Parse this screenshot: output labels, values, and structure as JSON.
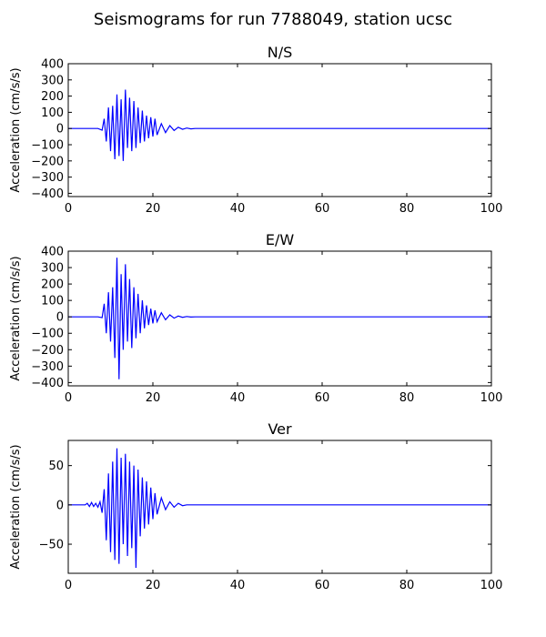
{
  "figure": {
    "title": "Seismograms for run 7788049, station ucsc"
  },
  "chart_data": [
    {
      "type": "line",
      "title": "N/S",
      "xlabel": "",
      "ylabel": "Acceleration (cm/s/s)",
      "xlim": [
        0,
        100
      ],
      "ylim": [
        -420,
        400
      ],
      "xticks": [
        0,
        20,
        40,
        60,
        80,
        100
      ],
      "yticks": [
        -400,
        -300,
        -200,
        -100,
        0,
        100,
        200,
        300,
        400
      ],
      "grid": false,
      "line_color": "#0000ff",
      "series": [
        {
          "x": [
            0,
            5,
            7,
            8,
            8.5,
            9,
            9.5,
            10,
            10.5,
            11,
            11.5,
            12,
            12.5,
            13,
            13.5,
            14,
            14.5,
            15,
            15.5,
            16,
            16.5,
            17,
            17.5,
            18,
            18.5,
            19,
            19.5,
            20,
            20.5,
            21,
            22,
            23,
            24,
            25,
            26,
            27,
            28,
            29,
            30,
            40,
            60,
            80,
            100
          ],
          "y": [
            0,
            0,
            0,
            -10,
            60,
            -80,
            130,
            -140,
            140,
            -190,
            210,
            -170,
            180,
            -200,
            240,
            -120,
            190,
            -140,
            170,
            -120,
            130,
            -90,
            110,
            -80,
            80,
            -60,
            70,
            -50,
            60,
            -40,
            30,
            -25,
            18,
            -12,
            8,
            -5,
            3,
            -2,
            0,
            0,
            0,
            0,
            0
          ]
        }
      ]
    },
    {
      "type": "line",
      "title": "E/W",
      "xlabel": "",
      "ylabel": "Acceleration (cm/s/s)",
      "xlim": [
        0,
        100
      ],
      "ylim": [
        -420,
        400
      ],
      "xticks": [
        0,
        20,
        40,
        60,
        80,
        100
      ],
      "yticks": [
        -400,
        -300,
        -200,
        -100,
        0,
        100,
        200,
        300,
        400
      ],
      "grid": false,
      "line_color": "#0000ff",
      "series": [
        {
          "x": [
            0,
            5,
            7,
            8,
            8.5,
            9,
            9.5,
            10,
            10.5,
            11,
            11.5,
            12,
            12.5,
            13,
            13.5,
            14,
            14.5,
            15,
            15.5,
            16,
            16.5,
            17,
            17.5,
            18,
            18.5,
            19,
            19.5,
            20,
            20.5,
            21,
            22,
            23,
            24,
            25,
            26,
            27,
            28,
            29,
            30,
            40,
            60,
            80,
            100
          ],
          "y": [
            0,
            0,
            0,
            -5,
            80,
            -100,
            150,
            -150,
            180,
            -250,
            360,
            -380,
            260,
            -200,
            320,
            -150,
            230,
            -190,
            180,
            -130,
            140,
            -100,
            100,
            -70,
            70,
            -50,
            50,
            -40,
            40,
            -30,
            25,
            -18,
            12,
            -8,
            5,
            -3,
            2,
            -1,
            0,
            0,
            0,
            0,
            0
          ]
        }
      ]
    },
    {
      "type": "line",
      "title": "Ver",
      "xlabel": "",
      "ylabel": "Acceleration (cm/s/s)",
      "xlim": [
        0,
        100
      ],
      "ylim": [
        -87,
        82
      ],
      "xticks": [
        0,
        20,
        40,
        60,
        80,
        100
      ],
      "yticks": [
        -50,
        0,
        50
      ],
      "grid": false,
      "line_color": "#0000ff",
      "series": [
        {
          "x": [
            0,
            4,
            4.5,
            5,
            5.5,
            6,
            6.5,
            7,
            7.5,
            8,
            8.5,
            9,
            9.5,
            10,
            10.5,
            11,
            11.5,
            12,
            12.5,
            13,
            13.5,
            14,
            14.5,
            15,
            15.5,
            16,
            16.5,
            17,
            17.5,
            18,
            18.5,
            19,
            19.5,
            20,
            20.5,
            21,
            22,
            23,
            24,
            25,
            26,
            27,
            28,
            30,
            40,
            60,
            80,
            100
          ],
          "y": [
            0,
            0,
            2,
            -2,
            3,
            -2,
            2,
            -3,
            4,
            -10,
            20,
            -45,
            40,
            -60,
            55,
            -70,
            72,
            -75,
            60,
            -50,
            65,
            -65,
            55,
            -55,
            50,
            -80,
            45,
            -40,
            35,
            -30,
            30,
            -25,
            22,
            -18,
            15,
            -12,
            9,
            -6,
            4,
            -3,
            2,
            -1,
            0,
            0,
            0,
            0,
            0,
            0
          ]
        }
      ]
    }
  ]
}
